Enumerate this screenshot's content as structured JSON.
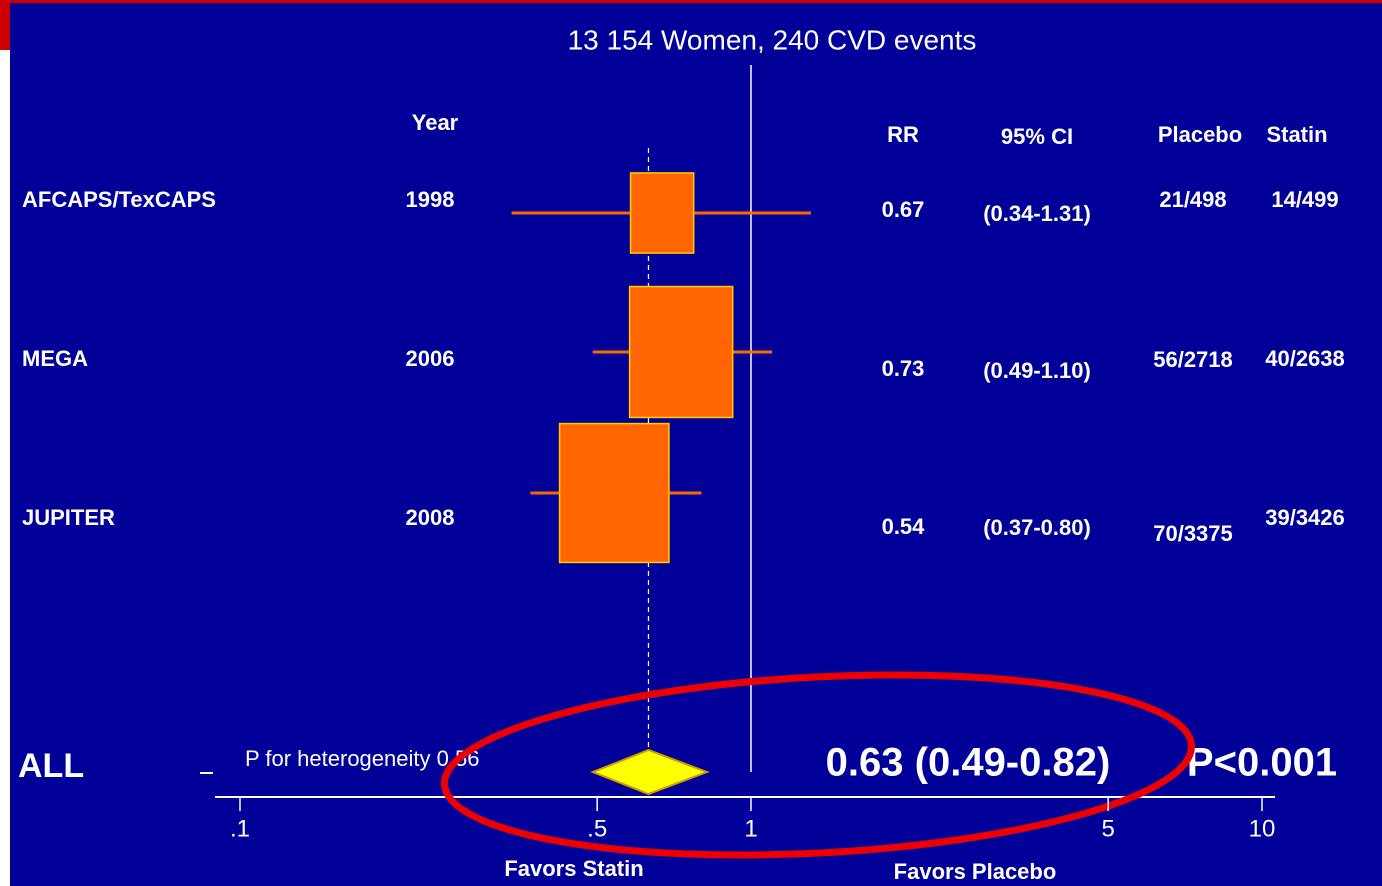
{
  "chart_data": {
    "type": "forest",
    "title": "13 154 Women, 240 CVD events",
    "headers": {
      "year": "Year",
      "rr": "RR",
      "ci": "95% CI",
      "placebo": "Placebo",
      "statin": "Statin"
    },
    "studies": [
      {
        "name": "AFCAPS/TexCAPS",
        "year": "1998",
        "rr": 0.67,
        "ci_low": 0.34,
        "ci_high": 1.31,
        "ci_label": "(0.34-1.31)",
        "placebo": "21/498",
        "statin": "14/499",
        "weight": 15
      },
      {
        "name": "MEGA",
        "year": "2006",
        "rr": 0.73,
        "ci_low": 0.49,
        "ci_high": 1.1,
        "ci_label": "(0.49-1.10)",
        "placebo": "56/2718",
        "statin": "40/2638",
        "weight": 40
      },
      {
        "name": "JUPITER",
        "year": "2008",
        "rr": 0.54,
        "ci_low": 0.37,
        "ci_high": 0.8,
        "ci_label": "(0.37-0.80)",
        "placebo": "70/3375",
        "statin": "39/3426",
        "weight": 45
      }
    ],
    "pooled": {
      "name": "ALL",
      "heterogeneity": "P for heterogeneity 0.56",
      "rr": 0.63,
      "ci_low": 0.49,
      "ci_high": 0.82,
      "label": "0.63 (0.49-0.82)",
      "p": "P<0.001"
    },
    "xlim": [
      0.1,
      10
    ],
    "xticks": [
      {
        "value": 0.1,
        "label": ".1"
      },
      {
        "value": 0.5,
        "label": ".5"
      },
      1,
      5,
      10
    ],
    "log_x": true,
    "reference": 1,
    "xlabel_left": "Favors Statin",
    "xlabel_right": "Favors Placebo",
    "box_color": "#ff6600",
    "box_edge": "#ffcc00",
    "diamond_color": "#ffff00"
  }
}
